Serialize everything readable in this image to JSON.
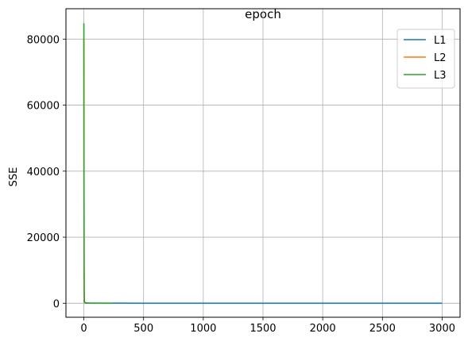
{
  "chart_data": {
    "type": "line",
    "title": "epoch",
    "xlabel": "",
    "ylabel": "SSE",
    "xlim": [
      -150,
      3150
    ],
    "ylim": [
      -4250,
      89200
    ],
    "xticks": [
      0,
      500,
      1000,
      1500,
      2000,
      2500,
      3000
    ],
    "yticks": [
      0,
      20000,
      40000,
      60000,
      80000
    ],
    "grid": true,
    "legend_position": "top-right",
    "series": [
      {
        "name": "L1",
        "color": "#1f77b4",
        "x": [
          0,
          3,
          6,
          10,
          20,
          50,
          100,
          500,
          1000,
          2000,
          3000
        ],
        "y": [
          1000,
          700,
          300,
          150,
          80,
          40,
          20,
          8,
          5,
          3,
          2
        ]
      },
      {
        "name": "L2",
        "color": "#ff7f0e",
        "x": [
          0,
          1,
          2,
          4,
          8,
          20,
          50,
          100
        ],
        "y": [
          80000,
          30000,
          5000,
          800,
          200,
          60,
          20,
          10
        ]
      },
      {
        "name": "L3",
        "color": "#2ca02c",
        "x": [
          0,
          1,
          2,
          3,
          4,
          5,
          6,
          8,
          15,
          30,
          60,
          120,
          240
        ],
        "y": [
          84800,
          40000,
          12000,
          3000,
          1000,
          400,
          200,
          120,
          60,
          30,
          15,
          8,
          5
        ]
      }
    ]
  }
}
